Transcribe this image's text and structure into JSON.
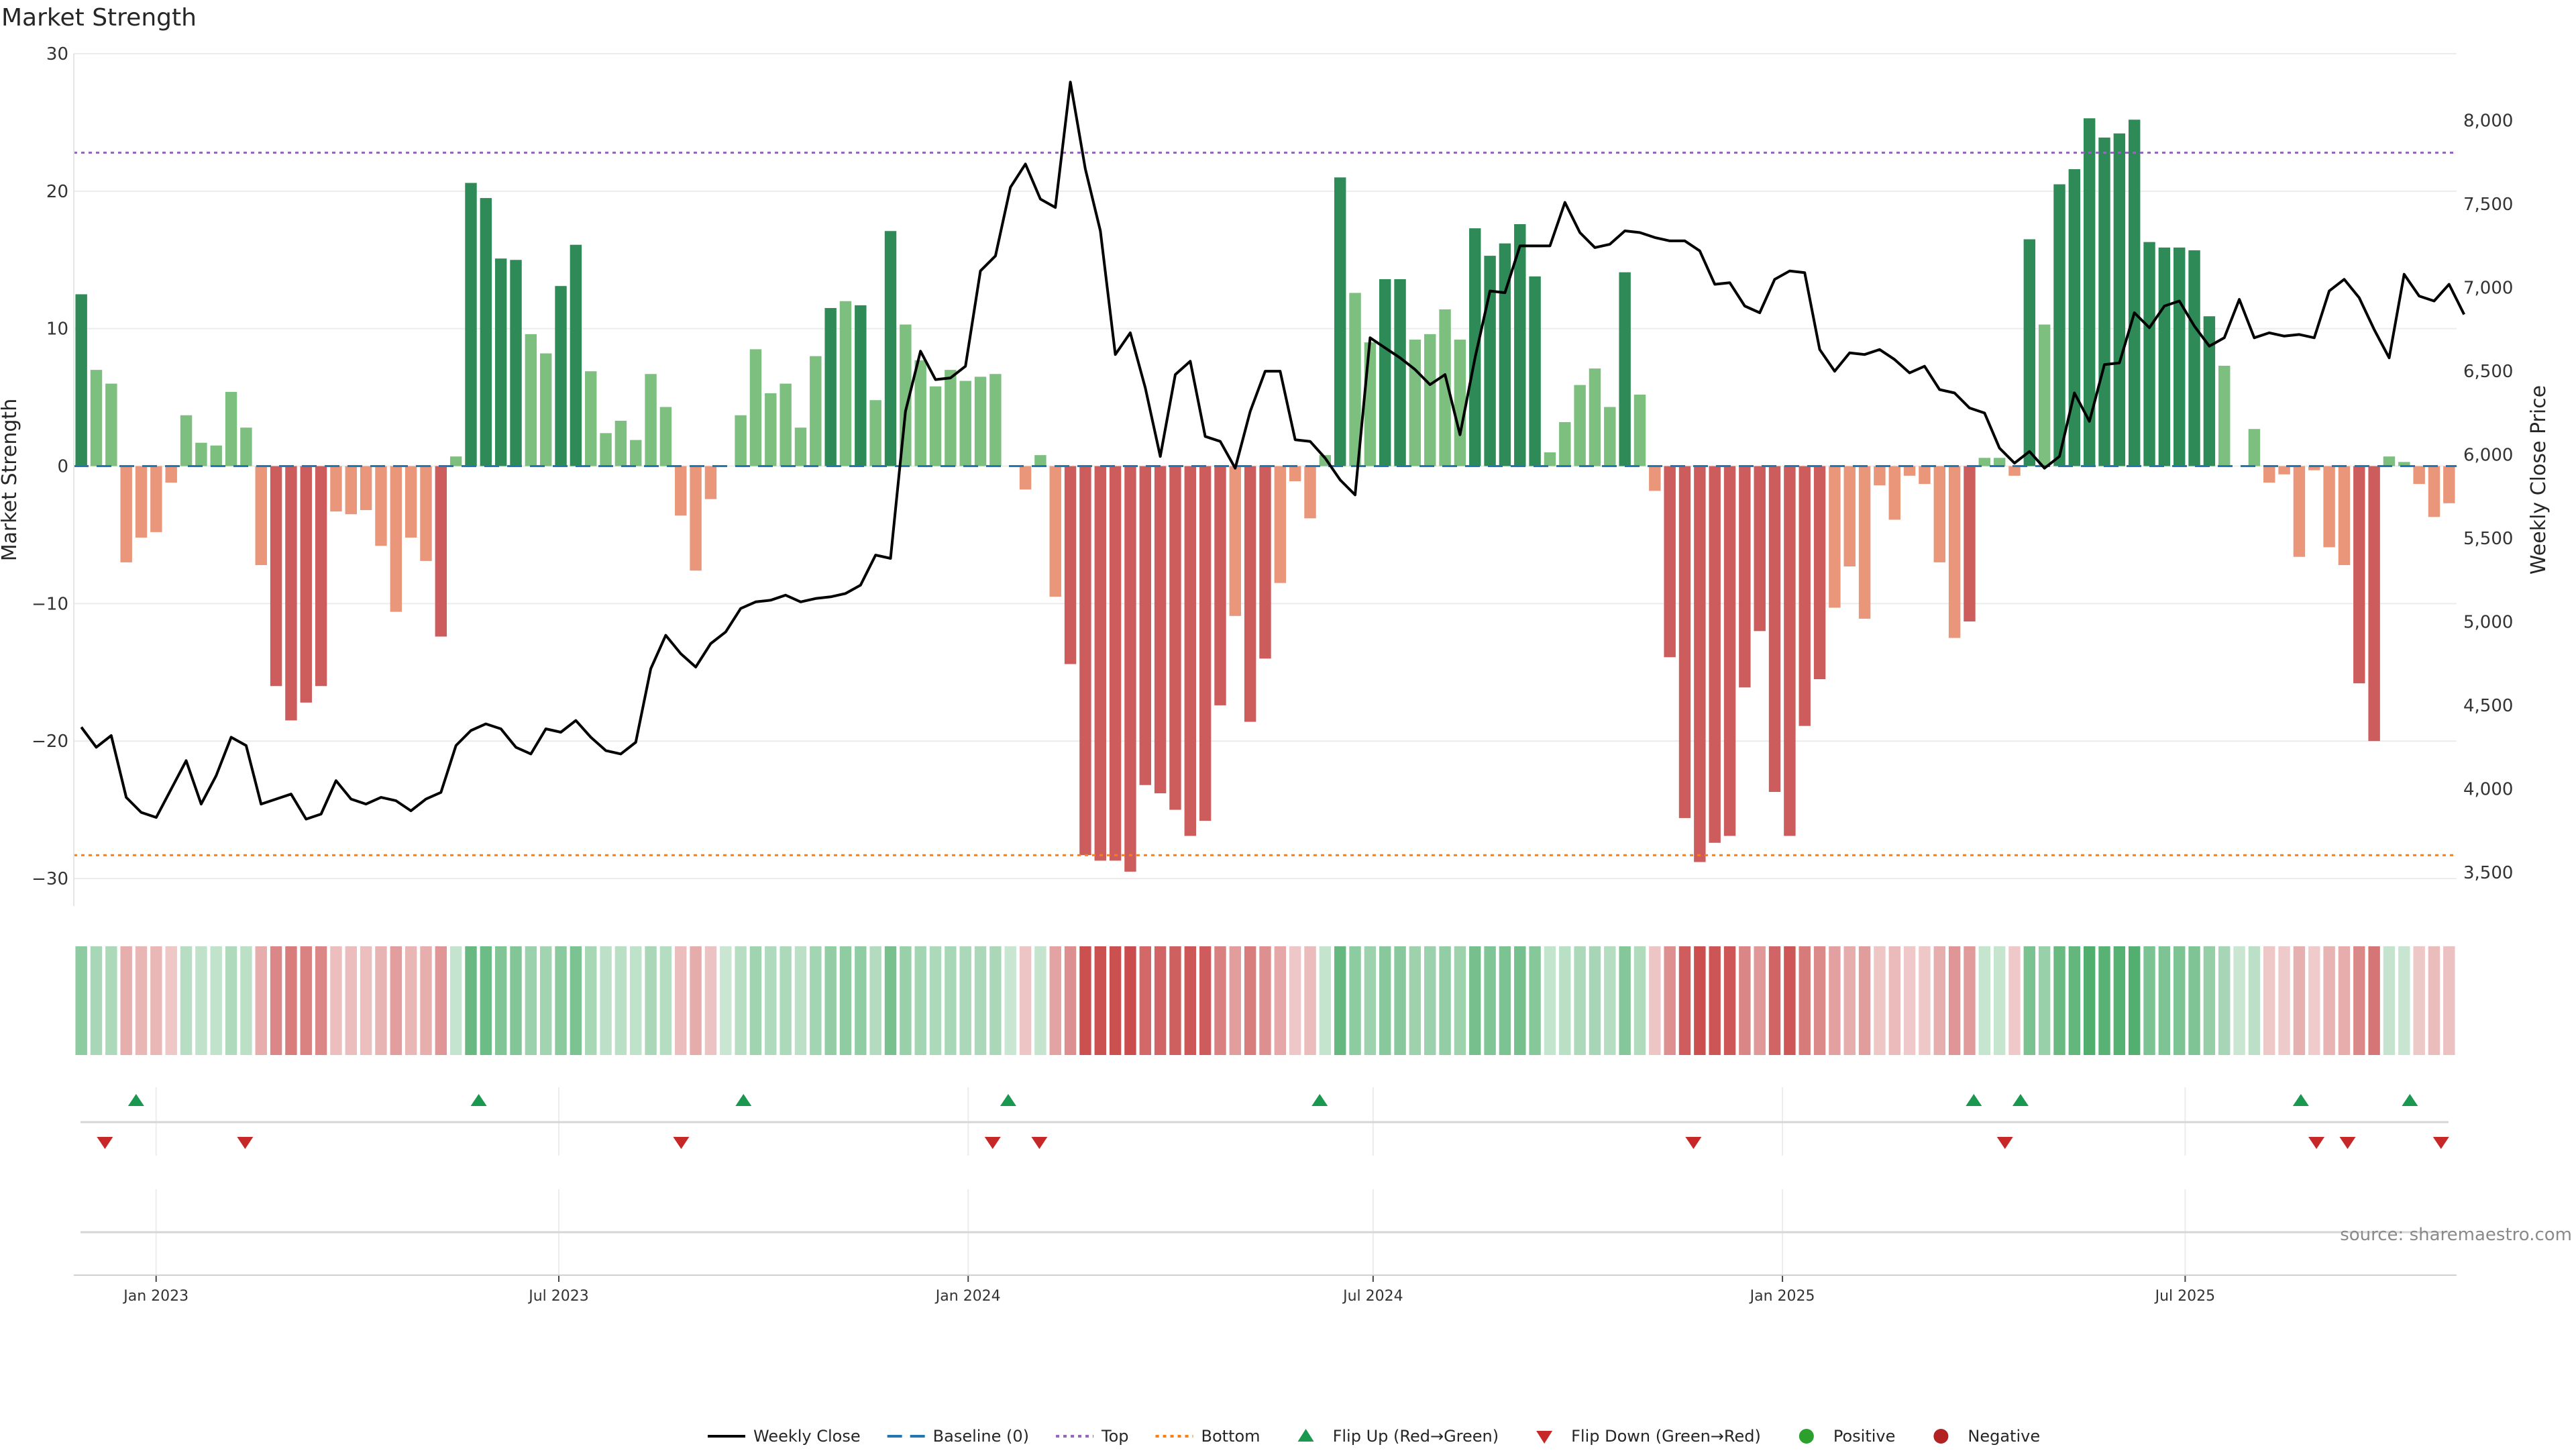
{
  "title": "Market Strength",
  "source": "source: sharemaestro.com",
  "chart_data": {
    "type": "bar",
    "ylabel_left": "Market Strength",
    "ylabel_right": "Weekly Close Price",
    "ylim_left": [
      -32,
      30
    ],
    "yticks_left": [
      30,
      20,
      10,
      0,
      -10,
      -20,
      -30
    ],
    "ytick_labels_left": [
      "30",
      "20",
      "10",
      "0",
      "−10",
      "−20",
      "−30"
    ],
    "ylim_right": [
      3300,
      8400
    ],
    "yticks_right": [
      8000,
      7500,
      7000,
      6500,
      6000,
      5500,
      5000,
      4500,
      4000,
      3500
    ],
    "ytick_labels_right": [
      "8,000",
      "7,500",
      "7,000",
      "6,500",
      "6,000",
      "5,500",
      "5,000",
      "4,500",
      "4,000",
      "3,500"
    ],
    "x_start": "2022-11-25",
    "x_end": "2025-10-31",
    "date_ticks": [
      {
        "date": "2023-01-01",
        "label": "Jan 2023"
      },
      {
        "date": "2023-07-01",
        "label": "Jul 2023"
      },
      {
        "date": "2024-01-01",
        "label": "Jan 2024"
      },
      {
        "date": "2024-07-01",
        "label": "Jul 2024"
      },
      {
        "date": "2025-01-01",
        "label": "Jan 2025"
      },
      {
        "date": "2025-07-01",
        "label": "Jul 2025"
      }
    ],
    "top_level": 22.8,
    "bottom_level": -28.3,
    "baseline": 0,
    "strength": [
      12.5,
      7.0,
      6.0,
      -7.0,
      -5.2,
      -4.8,
      -1.2,
      3.7,
      1.7,
      1.5,
      5.4,
      2.8,
      -7.2,
      -16.0,
      -18.5,
      -17.2,
      -16.0,
      -3.3,
      -3.5,
      -3.2,
      -5.8,
      -10.6,
      -5.2,
      -6.9,
      -12.4,
      0.7,
      20.6,
      19.5,
      15.1,
      15.0,
      9.6,
      8.2,
      13.1,
      16.1,
      6.9,
      2.4,
      3.3,
      1.9,
      6.7,
      4.3,
      -3.6,
      -7.6,
      -2.4,
      0.0,
      3.7,
      8.5,
      5.3,
      6.0,
      2.8,
      8.0,
      11.5,
      12.0,
      11.7,
      4.8,
      17.1,
      10.3,
      7.7,
      5.8,
      7.0,
      6.2,
      6.5,
      6.7,
      0.0,
      -1.7,
      0.8,
      -9.5,
      -14.4,
      -28.3,
      -28.7,
      -28.7,
      -29.5,
      -23.2,
      -23.8,
      -25.0,
      -26.9,
      -25.8,
      -17.4,
      -10.9,
      -18.6,
      -14.0,
      -8.5,
      -1.1,
      -3.8,
      0.8,
      21.0,
      12.6,
      9.0,
      13.6,
      13.6,
      9.2,
      9.6,
      11.4,
      9.2,
      17.3,
      15.3,
      16.2,
      17.6,
      13.8,
      1.0,
      3.2,
      5.9,
      7.1,
      4.3,
      14.1,
      5.2,
      -1.8,
      -13.9,
      -25.6,
      -28.8,
      -27.4,
      -26.9,
      -16.1,
      -12.0,
      -23.7,
      -26.9,
      -18.9,
      -15.5,
      -10.3,
      -7.3,
      -11.1,
      -1.4,
      -3.9,
      -0.7,
      -1.3,
      -7.0,
      -12.5,
      -11.3,
      0.6,
      0.6,
      -0.7,
      16.5,
      10.3,
      20.5,
      21.6,
      25.3,
      23.9,
      24.2,
      25.2,
      16.3,
      15.9,
      15.9,
      15.7,
      10.9,
      7.3,
      0.0,
      2.7,
      -1.2,
      -0.6,
      -6.6,
      -0.3,
      -5.9,
      -7.2,
      -15.8,
      -20.0,
      0.7,
      0.3,
      -1.3,
      -3.7,
      -2.7
    ],
    "close": [
      4370,
      4250,
      4320,
      3950,
      3860,
      3830,
      4000,
      4170,
      3910,
      4080,
      4310,
      4260,
      3910,
      3940,
      3970,
      3820,
      3850,
      4050,
      3940,
      3910,
      3950,
      3930,
      3870,
      3940,
      3980,
      4260,
      4350,
      4390,
      4360,
      4250,
      4210,
      4360,
      4340,
      4410,
      4310,
      4230,
      4210,
      4280,
      4720,
      4920,
      4810,
      4730,
      4870,
      4940,
      5080,
      5120,
      5130,
      5160,
      5120,
      5140,
      5150,
      5170,
      5220,
      5400,
      5380,
      6260,
      6620,
      6450,
      6460,
      6530,
      7100,
      7190,
      7600,
      7740,
      7530,
      7480,
      8230,
      7710,
      7340,
      6600,
      6730,
      6400,
      5990,
      6480,
      6560,
      6110,
      6080,
      5920,
      6260,
      6500,
      6500,
      6090,
      6080,
      5980,
      5850,
      5760,
      6700,
      6640,
      6580,
      6510,
      6420,
      6480,
      6120,
      6580,
      6980,
      6970,
      7250,
      7250,
      7250,
      7510,
      7330,
      7240,
      7260,
      7340,
      7330,
      7300,
      7280,
      7280,
      7220,
      7020,
      7030,
      6890,
      6850,
      7050,
      7100,
      7090,
      6630,
      6500,
      6610,
      6600,
      6630,
      6570,
      6490,
      6530,
      6390,
      6370,
      6280,
      6250,
      6040,
      5950,
      6020,
      5920,
      5990,
      6370,
      6200,
      6540,
      6550,
      6850,
      6760,
      6890,
      6920,
      6770,
      6650,
      6700,
      6930,
      6700,
      6730,
      6710,
      6720,
      6700,
      6980,
      7050,
      6940,
      6750,
      6580,
      7080,
      6950,
      6920,
      7020,
      6840
    ],
    "flip_up_dates": [
      "2022-12-23",
      "2023-05-26",
      "2023-09-22",
      "2024-01-19",
      "2024-06-07",
      "2025-03-28",
      "2025-04-18",
      "2025-08-22",
      "2025-10-10"
    ],
    "flip_down_dates": [
      "2022-12-09",
      "2023-02-10",
      "2023-08-25",
      "2024-01-12",
      "2024-02-02",
      "2024-11-22",
      "2025-04-11",
      "2025-08-29",
      "2025-09-12",
      "2025-10-24"
    ],
    "colors": {
      "pos_strong": "#2e8b57",
      "pos_weak": "#7cbf7e",
      "neg_strong": "#cd5c5c",
      "neg_weak": "#e9967a",
      "close_line": "#000000",
      "baseline": "#1f77b4",
      "top": "#9467bd",
      "bottom": "#ff7f0e",
      "flip_up": "#1a9850",
      "flip_down": "#c62828",
      "positive": "#2ca02c",
      "negative": "#b22222"
    },
    "legend_placement": "bottom-center",
    "grid": true
  },
  "legend": [
    {
      "key": "weekly_close",
      "label": "Weekly Close"
    },
    {
      "key": "baseline",
      "label": "Baseline (0)"
    },
    {
      "key": "top",
      "label": "Top"
    },
    {
      "key": "bottom",
      "label": "Bottom"
    },
    {
      "key": "flip_up",
      "label": "Flip Up (Red→Green)"
    },
    {
      "key": "flip_down",
      "label": "Flip Down (Green→Red)"
    },
    {
      "key": "positive",
      "label": "Positive"
    },
    {
      "key": "negative",
      "label": "Negative"
    }
  ]
}
